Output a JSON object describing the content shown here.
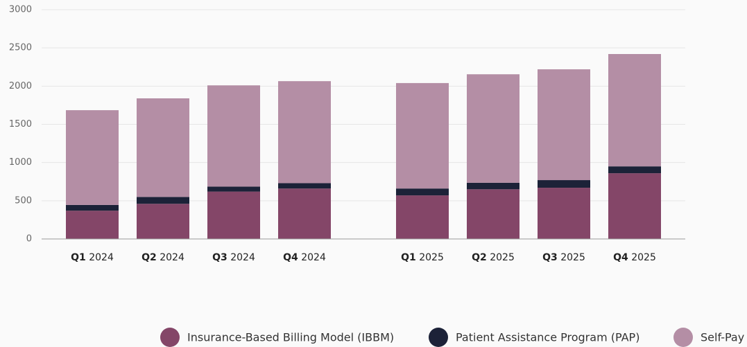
{
  "chart_data": {
    "type": "stacked_bar",
    "categories": [
      "Q1 2024",
      "Q2 2024",
      "Q3 2024",
      "Q4 2024",
      "Q1 2025",
      "Q2 2025",
      "Q3 2025",
      "Q4 2025"
    ],
    "series": [
      {
        "name": "Insurance-Based Billing Model (IBBM)",
        "color": "#844668",
        "values": [
          370,
          460,
          620,
          660,
          570,
          650,
          670,
          860
        ]
      },
      {
        "name": "Patient Assistance Program (PAP)",
        "color": "#1c2238",
        "values": [
          75,
          90,
          65,
          70,
          90,
          85,
          100,
          90
        ]
      },
      {
        "name": "Self-Pay",
        "color": "#b48ea5",
        "values": [
          1240,
          1290,
          1325,
          1335,
          1380,
          1420,
          1450,
          1470
        ]
      }
    ],
    "ylim": [
      0,
      3000
    ],
    "yticks": [
      0,
      500,
      1000,
      1500,
      2000,
      2500,
      3000
    ],
    "grid": true,
    "legend": "bottom-right"
  }
}
